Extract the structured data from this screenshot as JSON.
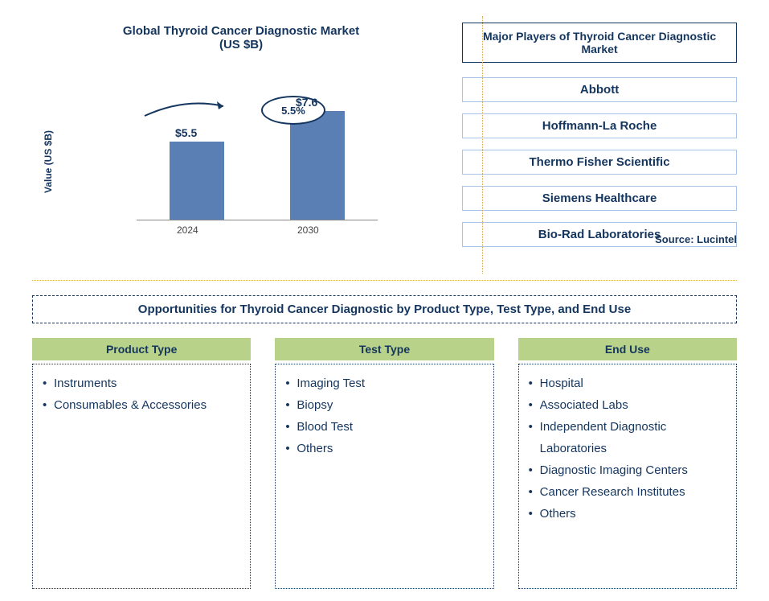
{
  "chart": {
    "title_line1": "Global Thyroid Cancer Diagnostic Market",
    "title_line2": "(US $B)",
    "y_axis_label": "Value (US $B)",
    "type": "bar",
    "bars": [
      {
        "year": "2024",
        "value": 5.5,
        "label": "$5.5",
        "height_pct": 65
      },
      {
        "year": "2030",
        "value": 7.6,
        "label": "$7.6",
        "height_pct": 90
      }
    ],
    "growth_rate": "5.5%",
    "bar_color": "#5a7fb5",
    "text_color": "#14355e",
    "source": "Source: Lucintel"
  },
  "players": {
    "title": "Major Players of Thyroid Cancer Diagnostic Market",
    "list": [
      "Abbott",
      "Hoffmann-La Roche",
      "Thermo Fisher Scientific",
      "Siemens Healthcare",
      "Bio-Rad Laboratories"
    ]
  },
  "opportunities": {
    "title": "Opportunities for Thyroid Cancer Diagnostic by Product Type, Test Type, and End Use",
    "columns": [
      {
        "header": "Product Type",
        "items": [
          "Instruments",
          "Consumables & Accessories"
        ]
      },
      {
        "header": "Test Type",
        "items": [
          "Imaging Test",
          "Biopsy",
          "Blood Test",
          "Others"
        ]
      },
      {
        "header": "End Use",
        "items": [
          "Hospital",
          "Associated Labs",
          "Independent Diagnostic Laboratories",
          "Diagnostic Imaging Centers",
          "Cancer Research Institutes",
          "Others"
        ]
      }
    ],
    "header_bg": "#b8d28a"
  }
}
